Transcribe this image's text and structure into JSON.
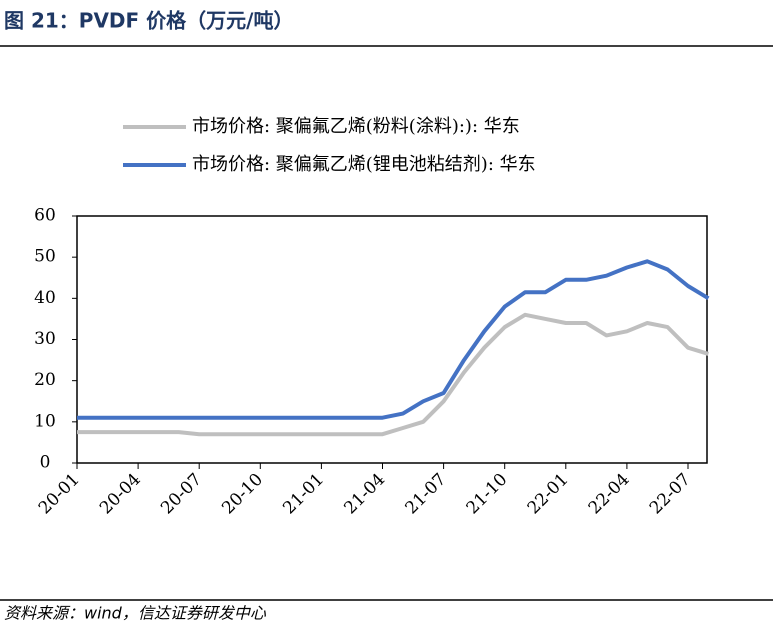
{
  "header": {
    "title": "图 21：PVDF 价格（万元/吨）"
  },
  "chart_data": {
    "type": "line",
    "categories": [
      "20-01",
      null,
      null,
      "20-04",
      null,
      null,
      "20-07",
      null,
      null,
      "20-10",
      null,
      null,
      "21-01",
      null,
      null,
      "21-04",
      null,
      null,
      "21-07",
      null,
      null,
      "21-10",
      null,
      null,
      "22-01",
      null,
      null,
      "22-04",
      null,
      null,
      "22-07",
      null
    ],
    "series": [
      {
        "name": "市场价格: 聚偏氟乙烯(粉料(涂料):): 华东",
        "color": "#bfbfbf",
        "values": [
          7.5,
          7.5,
          7.5,
          7.5,
          7.5,
          7.5,
          7,
          7,
          7,
          7,
          7,
          7,
          7,
          7,
          7,
          7,
          8.5,
          10,
          15,
          22,
          28,
          33,
          36,
          35,
          34,
          34,
          31,
          32,
          34,
          33,
          28,
          26.5
        ]
      },
      {
        "name": "市场价格: 聚偏氟乙烯(锂电池粘结剂): 华东",
        "color": "#4472c4",
        "values": [
          11,
          11,
          11,
          11,
          11,
          11,
          11,
          11,
          11,
          11,
          11,
          11,
          11,
          11,
          11,
          11,
          12,
          15,
          17,
          25,
          32,
          38,
          41.5,
          41.5,
          44.5,
          44.5,
          45.5,
          47.5,
          49,
          47,
          43,
          40
        ]
      }
    ],
    "ylim": [
      0,
      60
    ],
    "yticks": [
      0,
      10,
      20,
      30,
      40,
      50,
      60
    ]
  },
  "footer": {
    "source": "资料来源：wind，信达证券研发中心"
  }
}
